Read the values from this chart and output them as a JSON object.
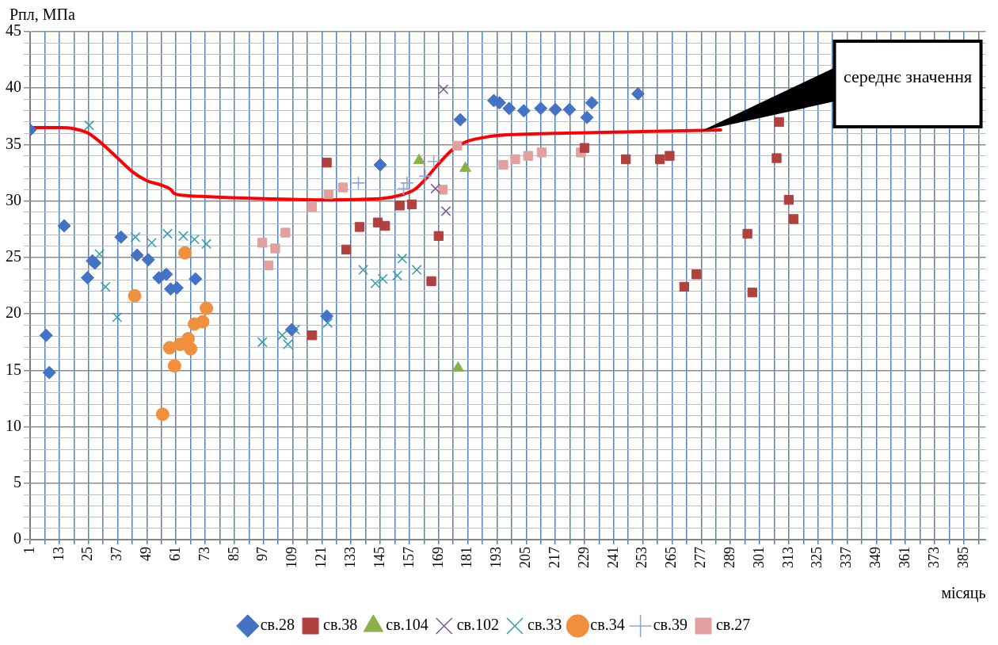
{
  "chart_data": {
    "type": "scatter",
    "xlabel": "місяць",
    "ylabel": "Рпл, МПа",
    "legend": "bottom",
    "grid": true,
    "xlim": [
      1,
      394
    ],
    "ylim": [
      0,
      45
    ],
    "xticks": [
      1,
      {
        "value": 7,
        "label": null
      },
      13,
      {
        "value": 19,
        "label": null
      },
      25,
      {
        "value": 31,
        "label": null
      },
      37,
      {
        "value": 43,
        "label": null
      },
      49,
      {
        "value": 55,
        "label": null
      },
      61,
      {
        "value": 67,
        "label": null
      },
      73,
      {
        "value": 79,
        "label": null
      },
      85,
      {
        "value": 91,
        "label": null
      },
      97,
      {
        "value": 103,
        "label": null
      },
      109,
      {
        "value": 115,
        "label": null
      },
      121,
      {
        "value": 127,
        "label": null
      },
      133,
      {
        "value": 139,
        "label": null
      },
      145,
      {
        "value": 151,
        "label": null
      },
      157,
      {
        "value": 163,
        "label": null
      },
      169,
      {
        "value": 175,
        "label": null
      },
      181,
      {
        "value": 187,
        "label": null
      },
      193,
      {
        "value": 199,
        "label": null
      },
      205,
      {
        "value": 211,
        "label": null
      },
      217,
      {
        "value": 223,
        "label": null
      },
      229,
      {
        "value": 235,
        "label": null
      },
      241,
      {
        "value": 247,
        "label": null
      },
      253,
      {
        "value": 259,
        "label": null
      },
      265,
      {
        "value": 271,
        "label": null
      },
      277,
      {
        "value": 283,
        "label": null
      },
      289,
      {
        "value": 295,
        "label": null
      },
      301,
      {
        "value": 307,
        "label": null
      },
      313,
      {
        "value": 319,
        "label": null
      },
      325,
      {
        "value": 331,
        "label": null
      },
      337,
      {
        "value": 343,
        "label": null
      },
      349,
      {
        "value": 355,
        "label": null
      },
      361,
      {
        "value": 367,
        "label": null
      },
      373,
      {
        "value": 379,
        "label": null
      },
      385,
      {
        "value": 391,
        "label": null
      }
    ],
    "yticks": [
      0,
      {
        "value": 1,
        "label": null
      },
      {
        "value": 2,
        "label": null
      },
      {
        "value": 3,
        "label": null
      },
      {
        "value": 4,
        "label": null
      },
      5,
      {
        "value": 6,
        "label": null
      },
      {
        "value": 7,
        "label": null
      },
      {
        "value": 8,
        "label": null
      },
      {
        "value": 9,
        "label": null
      },
      10,
      {
        "value": 11,
        "label": null
      },
      {
        "value": 12,
        "label": null
      },
      {
        "value": 13,
        "label": null
      },
      {
        "value": 14,
        "label": null
      },
      15,
      {
        "value": 16,
        "label": null
      },
      {
        "value": 17,
        "label": null
      },
      {
        "value": 18,
        "label": null
      },
      {
        "value": 19,
        "label": null
      },
      20,
      {
        "value": 21,
        "label": null
      },
      {
        "value": 22,
        "label": null
      },
      {
        "value": 23,
        "label": null
      },
      {
        "value": 24,
        "label": null
      },
      25,
      {
        "value": 26,
        "label": null
      },
      {
        "value": 27,
        "label": null
      },
      {
        "value": 28,
        "label": null
      },
      {
        "value": 29,
        "label": null
      },
      30,
      {
        "value": 31,
        "label": null
      },
      {
        "value": 32,
        "label": null
      },
      {
        "value": 33,
        "label": null
      },
      {
        "value": 34,
        "label": null
      },
      35,
      {
        "value": 36,
        "label": null
      },
      {
        "value": 37,
        "label": null
      },
      {
        "value": 38,
        "label": null
      },
      {
        "value": 39,
        "label": null
      },
      40,
      {
        "value": 41,
        "label": null
      },
      {
        "value": 42,
        "label": null
      },
      {
        "value": 43,
        "label": null
      },
      {
        "value": 44,
        "label": null
      },
      45
    ],
    "series": [
      {
        "type": "line",
        "color": "#ff0000",
        "marker": "none",
        "line_style": "solid",
        "x": [
          1,
          13,
          19,
          25,
          31,
          37,
          43,
          49,
          55,
          59,
          60,
          64,
          73,
          97,
          121,
          145,
          153,
          159,
          163,
          169,
          175,
          181,
          187,
          193,
          217,
          241,
          265,
          285
        ],
        "values": [
          36.5,
          36.5,
          36.4,
          36.0,
          35.0,
          33.8,
          32.6,
          31.8,
          31.4,
          31.0,
          30.7,
          30.5,
          30.4,
          30.2,
          30.1,
          30.2,
          30.5,
          31.0,
          31.8,
          33.3,
          34.6,
          35.3,
          35.6,
          35.8,
          36.0,
          36.1,
          36.2,
          36.3
        ]
      },
      {
        "name": "св.28",
        "color": "#4472c4",
        "marker": "diamond",
        "x": [
          1,
          7.6,
          8.9,
          15,
          24.6,
          26.6,
          27.6,
          38.4,
          45,
          49.6,
          54,
          57,
          58.8,
          61.4,
          69,
          108.6,
          123,
          145,
          177.9,
          191.7,
          194,
          198,
          204,
          211,
          217,
          222.8,
          230,
          232,
          251
        ],
        "values": [
          36.3,
          18.1,
          14.8,
          27.8,
          23.2,
          24.7,
          24.5,
          26.8,
          25.2,
          24.8,
          23.2,
          23.5,
          22.2,
          22.3,
          23.1,
          18.6,
          19.8,
          33.2,
          37.2,
          38.9,
          38.7,
          38.2,
          38.0,
          38.2,
          38.1,
          38.1,
          37.4,
          38.7,
          39.5
        ]
      },
      {
        "name": "св.38",
        "color": "#b0413e",
        "marker": "square",
        "x": [
          117,
          123,
          131,
          136.5,
          144,
          147,
          153,
          158,
          166,
          169,
          229,
          246,
          260,
          264,
          270,
          275,
          296,
          298,
          308,
          309,
          313,
          315
        ],
        "values": [
          18.1,
          33.4,
          25.7,
          27.7,
          28.1,
          27.8,
          29.6,
          29.7,
          22.9,
          26.9,
          34.7,
          33.7,
          33.7,
          34.0,
          22.4,
          23.5,
          27.1,
          21.9,
          33.8,
          37.0,
          30.1,
          28.4
        ]
      },
      {
        "name": "св.104",
        "color": "#8bb04a",
        "marker": "triangle",
        "x": [
          161,
          177,
          180
        ],
        "values": [
          33.6,
          15.2,
          32.9
        ]
      },
      {
        "name": "св.102",
        "color": "#7b5e9a",
        "marker": "cross",
        "x": [
          167.7,
          171,
          172
        ],
        "values": [
          31.1,
          39.9,
          29.1
        ]
      },
      {
        "name": "св.33",
        "color": "#3a9eb0",
        "marker": "cross",
        "x": [
          25.3,
          29.5,
          32,
          36.8,
          44.3,
          51,
          57.5,
          64,
          68.6,
          73.5,
          96.5,
          104.7,
          107,
          110,
          123.4,
          138,
          143,
          146,
          152,
          154,
          160
        ],
        "values": [
          36.7,
          25.3,
          22.4,
          19.7,
          26.8,
          26.3,
          27.1,
          26.9,
          26.6,
          26.2,
          17.5,
          18.1,
          17.3,
          18.6,
          19.2,
          23.9,
          22.7,
          23.1,
          23.4,
          24.9,
          23.9
        ]
      },
      {
        "name": "св.34",
        "color": "#f0903c",
        "marker": "circle",
        "x": [
          44,
          55.5,
          58.4,
          60.4,
          62.7,
          64.7,
          66,
          67,
          68.6,
          72,
          73.5
        ],
        "values": [
          21.6,
          11.1,
          17.0,
          15.4,
          17.3,
          25.4,
          17.8,
          16.9,
          19.1,
          19.3,
          20.5
        ]
      },
      {
        "name": "св.39",
        "color": "#8fa8d8",
        "marker": "plus",
        "x": [
          136,
          154.6,
          156,
          163.5,
          167
        ],
        "values": [
          31.6,
          31.1,
          31.6,
          32.2,
          33.5
        ]
      },
      {
        "name": "св.27",
        "color": "#e0a0a0",
        "marker": "square",
        "x": [
          96.5,
          99,
          101.8,
          106,
          116.9,
          123.7,
          129.6,
          170.7,
          176.6,
          195.6,
          200.5,
          205.8,
          211.4,
          227.5
        ],
        "values": [
          26.3,
          24.3,
          25.8,
          27.2,
          29.5,
          30.6,
          31.2,
          31.0,
          34.9,
          33.2,
          33.7,
          34.0,
          34.3,
          34.3
        ]
      }
    ],
    "annotations": [
      {
        "text": "середнє значення",
        "x": 277,
        "y": 36.2
      }
    ]
  }
}
